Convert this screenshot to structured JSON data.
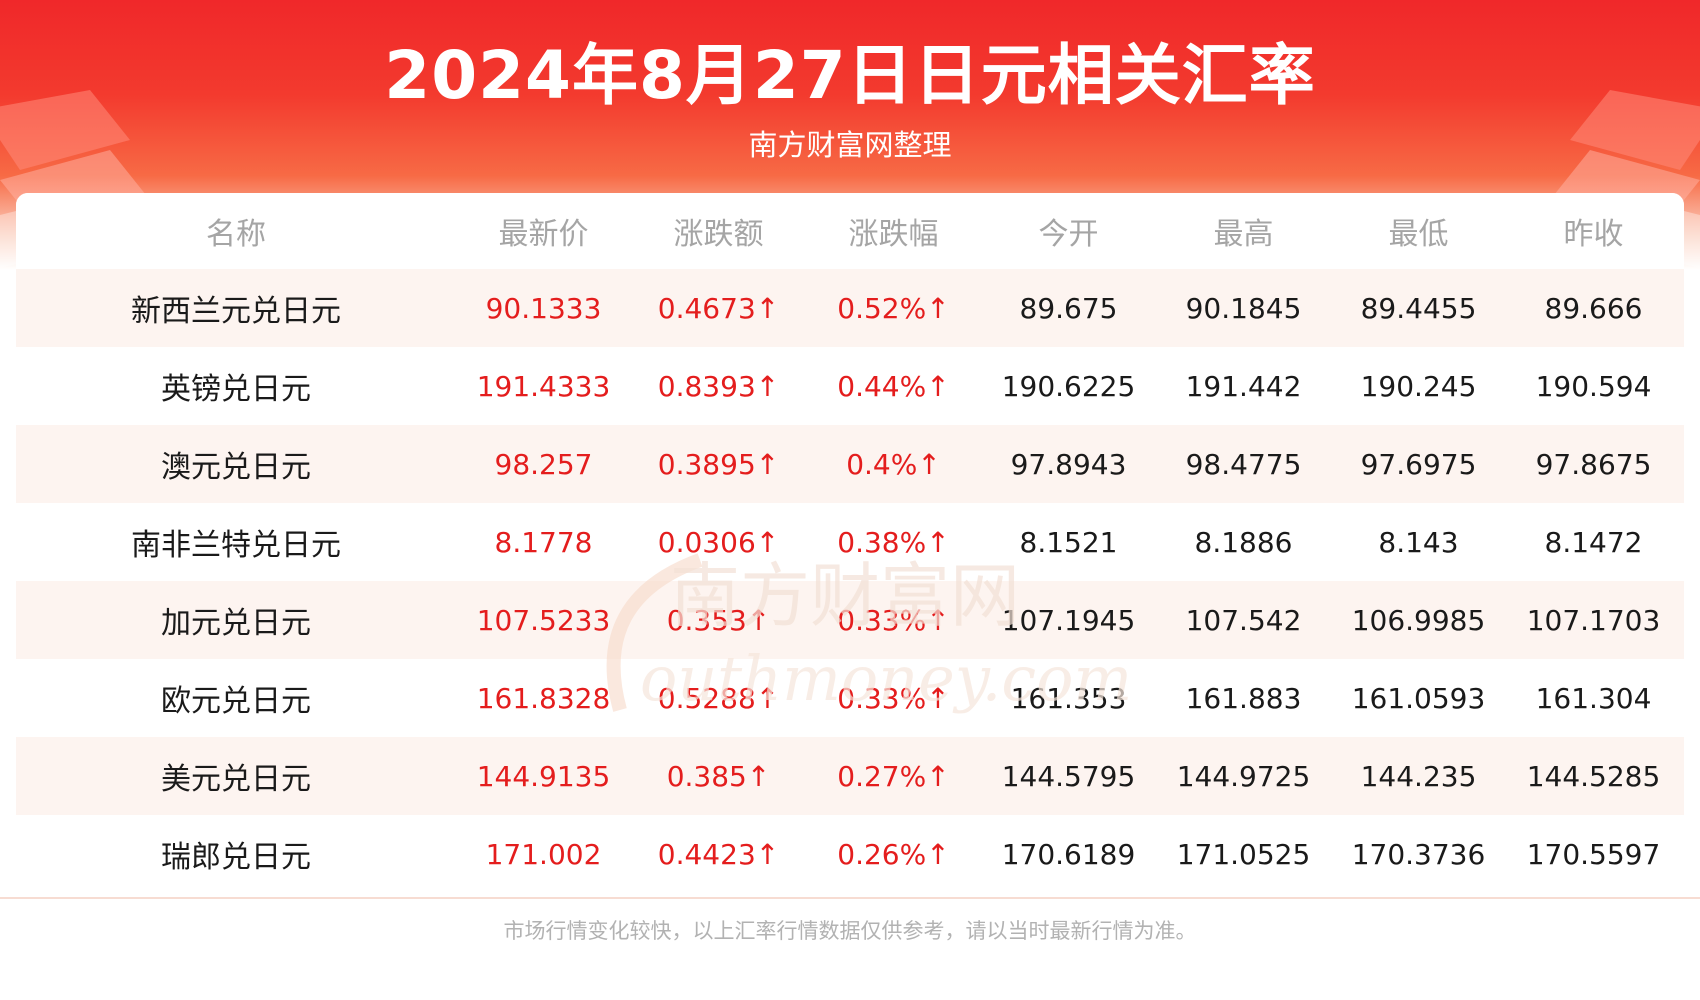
{
  "header": {
    "title": "2024年8月27日日元相关汇率",
    "subtitle": "南方财富网整理"
  },
  "table": {
    "columns": [
      "名称",
      "最新价",
      "涨跌额",
      "涨跌幅",
      "今开",
      "最高",
      "最低",
      "昨收"
    ],
    "rows": [
      {
        "name": "新西兰元兑日元",
        "latest": "90.1333",
        "change": "0.4673↑",
        "change_pct": "0.52%↑",
        "open": "89.675",
        "high": "90.1845",
        "low": "89.4455",
        "prev_close": "89.666"
      },
      {
        "name": "英镑兑日元",
        "latest": "191.4333",
        "change": "0.8393↑",
        "change_pct": "0.44%↑",
        "open": "190.6225",
        "high": "191.442",
        "low": "190.245",
        "prev_close": "190.594"
      },
      {
        "name": "澳元兑日元",
        "latest": "98.257",
        "change": "0.3895↑",
        "change_pct": "0.4%↑",
        "open": "97.8943",
        "high": "98.4775",
        "low": "97.6975",
        "prev_close": "97.8675"
      },
      {
        "name": "南非兰特兑日元",
        "latest": "8.1778",
        "change": "0.0306↑",
        "change_pct": "0.38%↑",
        "open": "8.1521",
        "high": "8.1886",
        "low": "8.143",
        "prev_close": "8.1472"
      },
      {
        "name": "加元兑日元",
        "latest": "107.5233",
        "change": "0.353↑",
        "change_pct": "0.33%↑",
        "open": "107.1945",
        "high": "107.542",
        "low": "106.9985",
        "prev_close": "107.1703"
      },
      {
        "name": "欧元兑日元",
        "latest": "161.8328",
        "change": "0.5288↑",
        "change_pct": "0.33%↑",
        "open": "161.353",
        "high": "161.883",
        "low": "161.0593",
        "prev_close": "161.304"
      },
      {
        "name": "美元兑日元",
        "latest": "144.9135",
        "change": "0.385↑",
        "change_pct": "0.27%↑",
        "open": "144.5795",
        "high": "144.9725",
        "low": "144.235",
        "prev_close": "144.5285"
      },
      {
        "name": "瑞郎兑日元",
        "latest": "171.002",
        "change": "0.4423↑",
        "change_pct": "0.26%↑",
        "open": "170.6189",
        "high": "171.0525",
        "low": "170.3736",
        "prev_close": "170.5597"
      }
    ]
  },
  "footer": {
    "note": "市场行情变化较快，以上汇率行情数据仅供参考，请以当时最新行情为准。"
  },
  "watermark": {
    "text_cn": "南方财富网",
    "text_en": "outhmoney.com"
  },
  "colors": {
    "banner_red": "#f0282a",
    "up_red": "#e41d1d",
    "stripe": "#fdf4f0",
    "header_text": "#a5a5a5"
  }
}
